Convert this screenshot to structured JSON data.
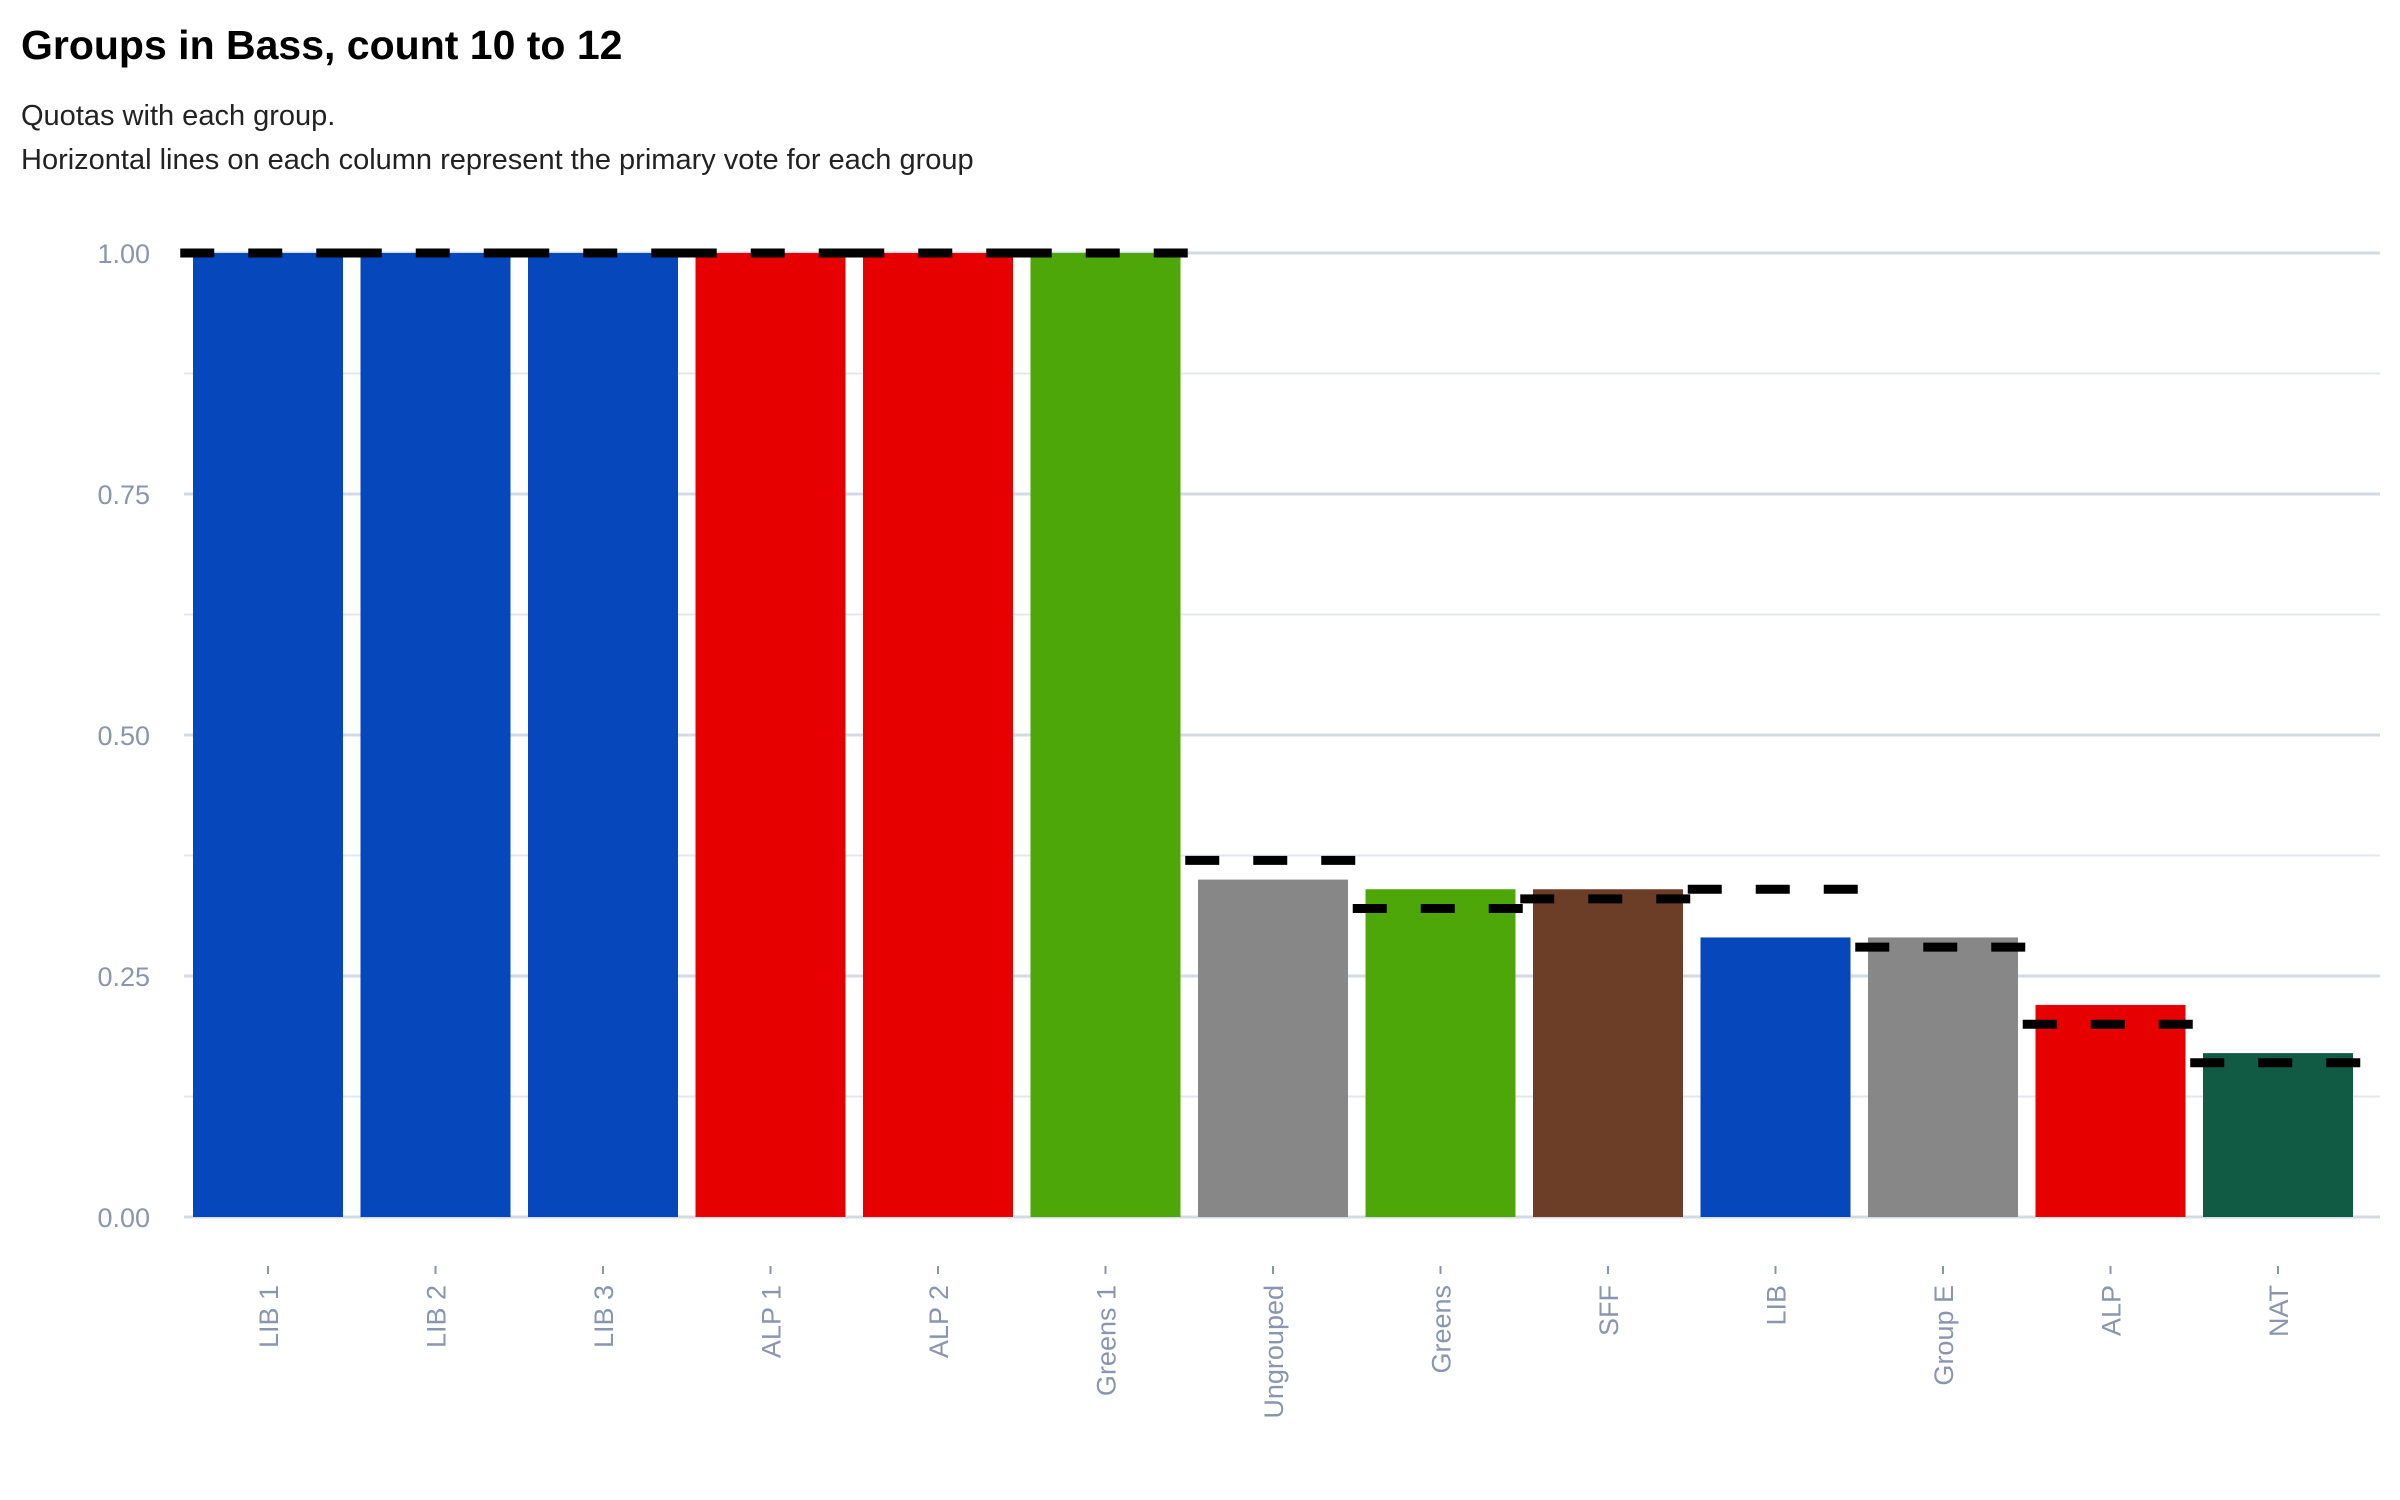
{
  "chart_data": {
    "type": "bar",
    "title": "Groups in Bass, count 10 to 12",
    "subtitle": [
      "Quotas with each group.",
      "Horizontal lines on each column represent the primary vote for each group"
    ],
    "xlabel": "",
    "ylabel": "",
    "ylim": [
      0,
      1
    ],
    "yticks": [
      "0.00",
      "0.25",
      "0.50",
      "0.75",
      "1.00"
    ],
    "grid": true,
    "categories": [
      "LIB 1",
      "LIB 2",
      "LIB 3",
      "ALP 1",
      "ALP 2",
      "Greens 1",
      "Ungrouped",
      "Greens",
      "SFF",
      "LIB",
      "Group E",
      "ALP",
      "NAT"
    ],
    "series": [
      {
        "name": "Quotas",
        "values": [
          1.0,
          1.0,
          1.0,
          1.0,
          1.0,
          1.0,
          0.35,
          0.34,
          0.34,
          0.29,
          0.29,
          0.22,
          0.17
        ]
      },
      {
        "name": "Primary vote",
        "values": [
          1.0,
          1.0,
          1.0,
          1.0,
          1.0,
          1.0,
          0.37,
          0.32,
          0.33,
          0.34,
          0.28,
          0.2,
          0.16
        ]
      }
    ],
    "colors": [
      "#0648bc",
      "#0648bc",
      "#0648bc",
      "#e60000",
      "#e60000",
      "#4ea708",
      "#878787",
      "#4ea708",
      "#6c3e28",
      "#0648bc",
      "#878787",
      "#e60000",
      "#115b45"
    ]
  }
}
